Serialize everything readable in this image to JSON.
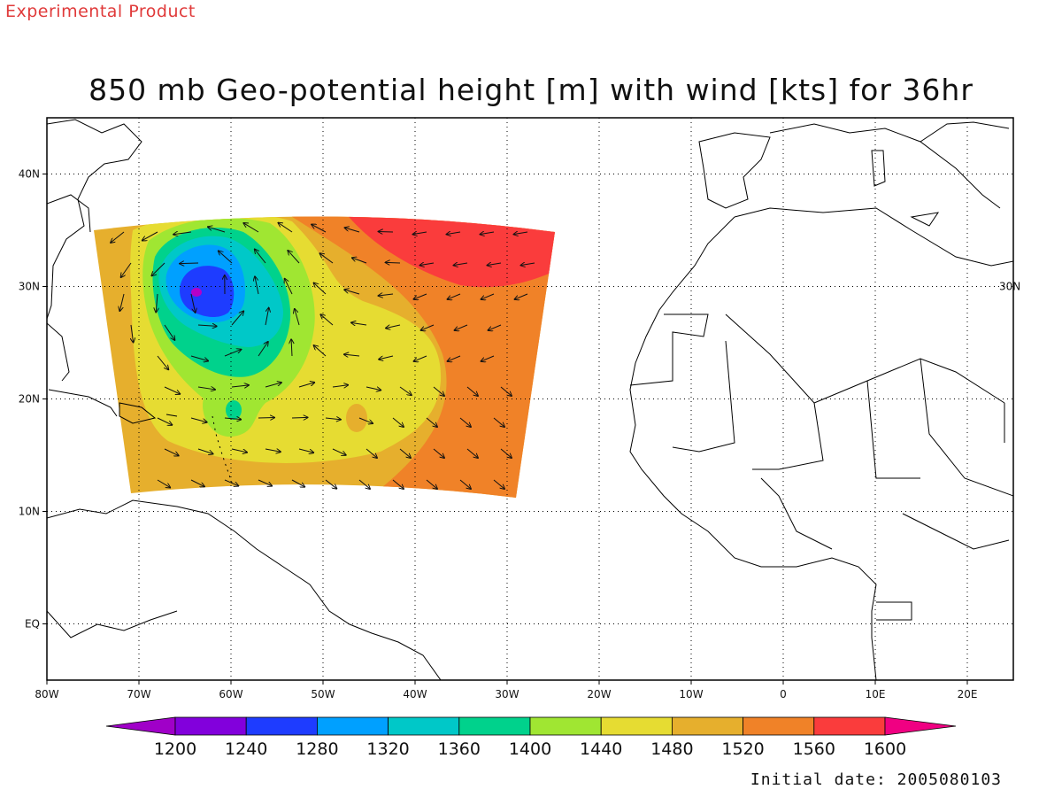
{
  "header": {
    "experimental_label": "Experimental Product",
    "title": "850 mb Geo-potential height [m] with wind [kts] for 36hr"
  },
  "footer": {
    "initial_date": "Initial date: 2005080103"
  },
  "map": {
    "lon_range": [
      -80,
      25
    ],
    "lat_range": [
      -5,
      45
    ],
    "x_ticks": [
      {
        "lon": -80,
        "label": "80W"
      },
      {
        "lon": -70,
        "label": "70W"
      },
      {
        "lon": -60,
        "label": "60W"
      },
      {
        "lon": -50,
        "label": "50W"
      },
      {
        "lon": -40,
        "label": "40W"
      },
      {
        "lon": -30,
        "label": "30W"
      },
      {
        "lon": -20,
        "label": "20W"
      },
      {
        "lon": -10,
        "label": "10W"
      },
      {
        "lon": 0,
        "label": "0"
      },
      {
        "lon": 10,
        "label": "10E"
      },
      {
        "lon": 20,
        "label": "20E"
      }
    ],
    "y_ticks": [
      {
        "lat": 40,
        "label": "40N"
      },
      {
        "lat": 30,
        "label": "30N"
      },
      {
        "lat": 20,
        "label": "20N"
      },
      {
        "lat": 10,
        "label": "10N"
      },
      {
        "lat": 0,
        "label": "EQ"
      }
    ],
    "right_label": {
      "lat": 30,
      "label": "30N"
    },
    "grid": true
  },
  "chart_data": {
    "type": "heatmap",
    "variable": "850 mb geopotential height",
    "units": "m",
    "low_center": {
      "lon": -63.5,
      "lat": 29.5,
      "min_level": 1240
    },
    "high_region": {
      "lon": -35,
      "lat": 34,
      "level": 1600
    },
    "colorbar": {
      "levels": [
        1200,
        1240,
        1280,
        1320,
        1360,
        1400,
        1440,
        1480,
        1520,
        1560,
        1600
      ],
      "colors": [
        "#a000c8",
        "#8200dc",
        "#1e3cff",
        "#00a0ff",
        "#00c8c8",
        "#00d28c",
        "#a0e632",
        "#e6dc32",
        "#e6af2d",
        "#f08228",
        "#fa3c3c",
        "#f00082"
      ]
    }
  }
}
